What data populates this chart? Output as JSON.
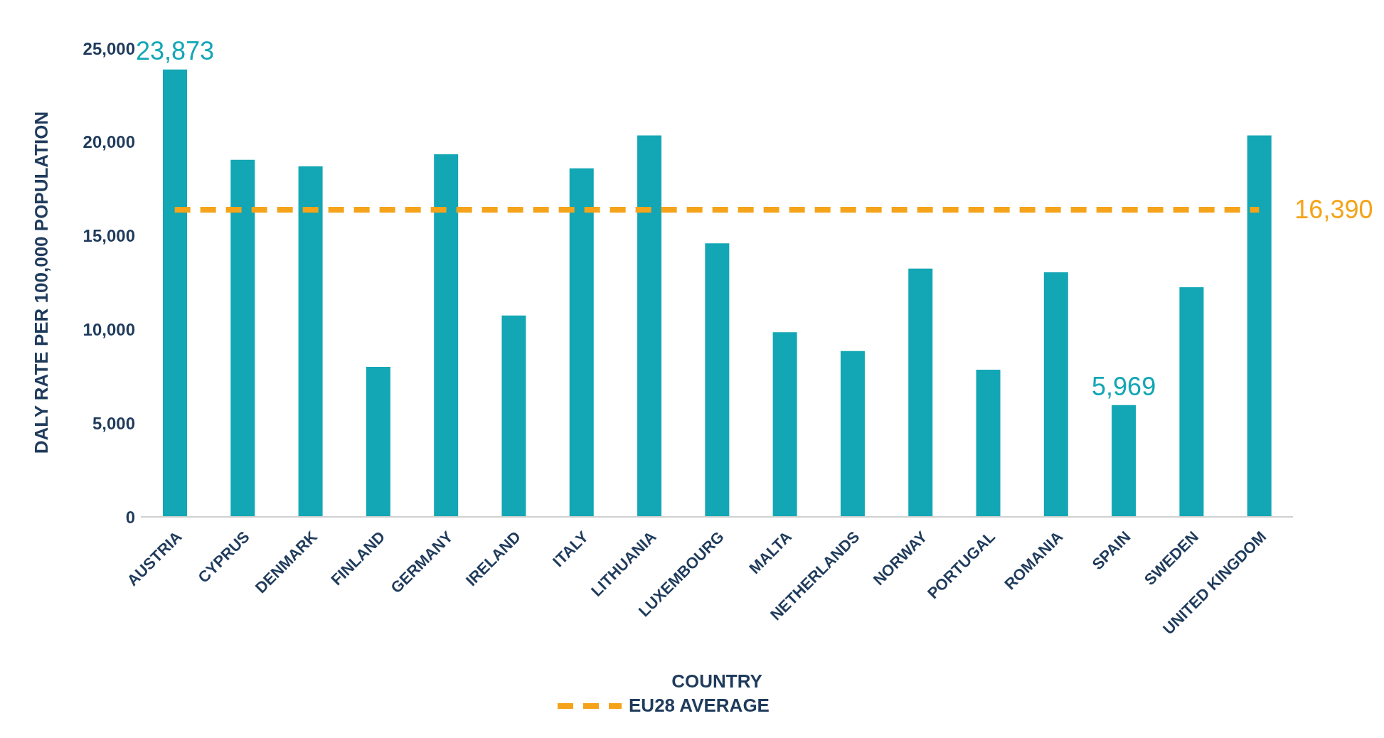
{
  "chart_data": {
    "type": "bar",
    "xlabel": "COUNTRY",
    "ylabel": "DALY RATE PER 100,000 POPULATION",
    "categories": [
      "AUSTRIA",
      "CYPRUS",
      "DENMARK",
      "FINLAND",
      "GERMANY",
      "IRELAND",
      "ITALY",
      "LITHUANIA",
      "LUXEMBOURG",
      "MALTA",
      "NETHERLANDS",
      "NORWAY",
      "PORTUGAL",
      "ROMANIA",
      "SPAIN",
      "SWEDEN",
      "UNITED KINGDOM"
    ],
    "series": [
      {
        "color": "#13a6b5",
        "values": [
          23873,
          19050,
          18700,
          8000,
          19350,
          10750,
          18600,
          20350,
          14600,
          9850,
          8850,
          13250,
          7850,
          13050,
          5969,
          12250,
          20350
        ],
        "value_labels": [
          "23,873",
          null,
          null,
          null,
          null,
          null,
          null,
          null,
          null,
          null,
          null,
          null,
          null,
          null,
          "5,969",
          null,
          null
        ]
      },
      {
        "type": "line",
        "name": "EU28 AVERAGE",
        "color": "#f5a31a",
        "line_style": "dashed",
        "marker": "none",
        "values": [
          16390,
          16390,
          16390,
          16390,
          16390,
          16390,
          16390,
          16390,
          16390,
          16390,
          16390,
          16390,
          16390,
          16390,
          16390,
          16390,
          16390
        ]
      }
    ],
    "annotations": [
      {
        "text": "16,390",
        "x": "UNITED KINGDOM",
        "y": 16390
      }
    ],
    "ylim": [
      0,
      25000
    ],
    "yticks": [
      0,
      {
        "value": 5000,
        "label": "5,000"
      },
      {
        "value": 10000,
        "label": "10,000"
      },
      {
        "value": 15000,
        "label": "15,000"
      },
      {
        "value": 20000,
        "label": "20,000"
      },
      {
        "value": 25000,
        "label": "25,000"
      }
    ],
    "grid": false,
    "legend": "bottom"
  }
}
